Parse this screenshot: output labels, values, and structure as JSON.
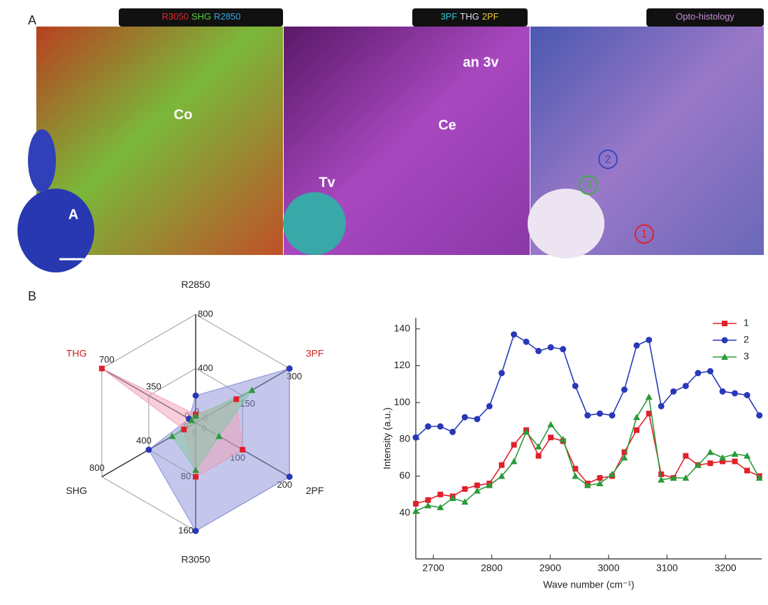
{
  "panel_a": {
    "label": "A",
    "images": [
      {
        "title": [
          {
            "text": "R3050",
            "color": "#e8262a"
          },
          {
            "text": "SHG",
            "color": "#52d43a"
          },
          {
            "text": "R2850",
            "color": "#30a8e8"
          }
        ],
        "labels": [
          "Co",
          "A"
        ]
      },
      {
        "title": [
          {
            "text": "3PF",
            "color": "#30c8d8"
          },
          {
            "text": "THG",
            "color": "#e8d8f0"
          },
          {
            "text": "2PF",
            "color": "#f0c830"
          }
        ],
        "labels": [
          "an 3v",
          "Ce",
          "Tv"
        ]
      },
      {
        "title": [
          {
            "text": "Opto-histology",
            "color": "#c890d8"
          }
        ],
        "labels": [
          "2",
          "3",
          "1"
        ]
      }
    ]
  },
  "panel_b": {
    "label": "B"
  },
  "chart_data": [
    {
      "type": "radar",
      "axes": [
        {
          "name": "R2850",
          "color": "#222222",
          "lim": [
            0,
            800
          ],
          "ticks": [
            0,
            400,
            800
          ]
        },
        {
          "name": "3PF",
          "color": "#d42020",
          "lim": [
            0,
            300
          ],
          "ticks": [
            0,
            150,
            300
          ]
        },
        {
          "name": "2PF",
          "color": "#222222",
          "lim": [
            0,
            200
          ],
          "ticks": [
            0,
            100,
            200
          ]
        },
        {
          "name": "R3050",
          "color": "#222222",
          "lim": [
            0,
            160
          ],
          "ticks": [
            0,
            80,
            160
          ]
        },
        {
          "name": "SHG",
          "color": "#222222",
          "lim": [
            0,
            800
          ],
          "ticks": [
            0,
            400,
            800
          ]
        },
        {
          "name": "THG",
          "color": "#d42020",
          "lim": [
            0,
            700
          ],
          "ticks": [
            0,
            350,
            700
          ]
        }
      ],
      "series": [
        {
          "color": "#2838b8",
          "fill": "#8a90d8",
          "marker": "circle",
          "values": [
            200,
            300,
            200,
            160,
            400,
            50
          ]
        },
        {
          "color": "#e0202a",
          "fill": "#f0a0b8",
          "marker": "square",
          "values": [
            60,
            130,
            100,
            80,
            100,
            700
          ]
        },
        {
          "color": "#2a9a3a",
          "fill": "#80c8a0",
          "marker": "triangle",
          "values": [
            50,
            180,
            50,
            70,
            200,
            30
          ]
        }
      ]
    },
    {
      "type": "line",
      "x_label": "Wave number (cm⁻¹)",
      "y_label": "Intensity (a.u.)",
      "x": [
        2670,
        2691,
        2712,
        2733,
        2754,
        2775,
        2796,
        2817,
        2838,
        2859,
        2880,
        2901,
        2922,
        2943,
        2964,
        2985,
        3006,
        3027,
        3048,
        3069,
        3090,
        3111,
        3132,
        3153,
        3174,
        3195,
        3216,
        3237,
        3258
      ],
      "xlim": [
        2670,
        3262
      ],
      "xticks": [
        2700,
        2800,
        2900,
        3000,
        3100,
        3200
      ],
      "ylim": [
        15,
        146
      ],
      "yticks": [
        40,
        60,
        80,
        100,
        120,
        140
      ],
      "legend": "upper right",
      "series": [
        {
          "name": "1",
          "color": "#e0202a",
          "marker": "square",
          "values": [
            45,
            47,
            50,
            49,
            53,
            55,
            56,
            66,
            77,
            85,
            71,
            81,
            79,
            64,
            56,
            59,
            60,
            73,
            85,
            94,
            61,
            59,
            71,
            66,
            67,
            68,
            68,
            63,
            60
          ]
        },
        {
          "name": "2",
          "color": "#2838b8",
          "marker": "circle",
          "values": [
            81,
            87,
            87,
            84,
            92,
            91,
            98,
            116,
            137,
            133,
            128,
            130,
            129,
            109,
            93,
            94,
            93,
            107,
            131,
            134,
            98,
            106,
            109,
            116,
            117,
            106,
            105,
            104,
            93
          ]
        },
        {
          "name": "3",
          "color": "#2a9a3a",
          "marker": "triangle",
          "values": [
            41,
            44,
            43,
            48,
            46,
            52,
            55,
            60,
            68,
            84,
            76,
            88,
            80,
            60,
            55,
            56,
            61,
            70,
            92,
            103,
            58,
            59,
            59,
            66,
            73,
            70,
            72,
            71,
            59
          ]
        }
      ]
    }
  ]
}
